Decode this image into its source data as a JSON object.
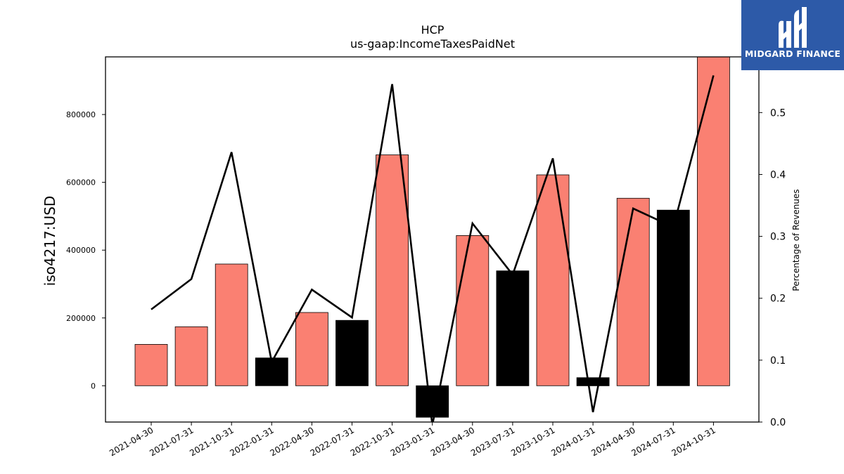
{
  "chart_data": {
    "type": "bar",
    "title": "HCP",
    "subtitle": "us-gaap:IncomeTaxesPaidNet",
    "ylabel": "iso4217:USD",
    "ylabel_right": "Percentage of Revenues",
    "categories": [
      "2021-04-30",
      "2021-07-31",
      "2021-10-31",
      "2022-01-31",
      "2022-04-30",
      "2022-07-31",
      "2022-10-31",
      "2023-01-31",
      "2023-04-30",
      "2023-07-31",
      "2023-10-31",
      "2024-01-31",
      "2024-04-30",
      "2024-07-31",
      "2024-10-31"
    ],
    "series": [
      {
        "values": [
          122000,
          174000,
          359000,
          82000,
          216000,
          193000,
          681000,
          -93000,
          443000,
          339000,
          622000,
          24000,
          553000,
          518000,
          970000
        ],
        "axis": "left",
        "kind": "bar"
      },
      {
        "values": [
          0.182,
          0.231,
          0.436,
          0.097,
          0.214,
          0.169,
          0.546,
          -0.005,
          0.321,
          0.238,
          0.426,
          0.016,
          0.345,
          0.315,
          0.56
        ],
        "axis": "right",
        "kind": "line"
      }
    ],
    "ylim": [
      -107000,
      970000
    ],
    "ylim_right": [
      0.0,
      0.59
    ],
    "yticks": [
      "0",
      "200000",
      "400000",
      "600000",
      "800000"
    ],
    "yticks_right": [
      "0.0",
      "0.1",
      "0.2",
      "0.3",
      "0.4",
      "0.5"
    ],
    "grid": false,
    "colors": {
      "positive_bar": "#fa8072",
      "negative_bar": "#000000",
      "line": "#000000"
    },
    "rule": "bars shown black where value is below the previous period"
  },
  "logo": {
    "text": "MIDGARD FINANCE",
    "icon": "midgard-logo-icon"
  }
}
